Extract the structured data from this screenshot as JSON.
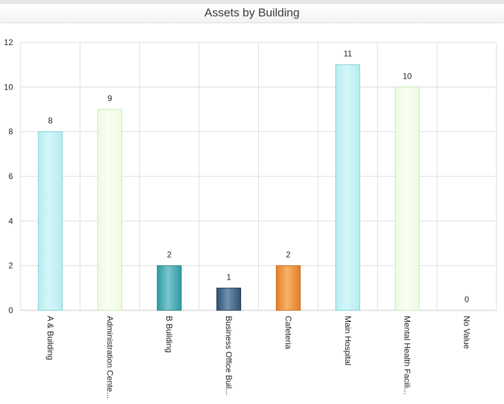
{
  "panel": {
    "title": "Assets by Building"
  },
  "colors": {
    "grid": "#dddddd",
    "axis": "#c8c8c8",
    "text": "#222222"
  },
  "chart_data": {
    "type": "bar",
    "title": "Assets by Building",
    "xlabel": "",
    "ylabel": "",
    "ylim": [
      0,
      12
    ],
    "yticks": [
      0,
      2,
      4,
      6,
      8,
      10,
      12
    ],
    "grid": true,
    "categories": [
      "A & Building",
      "Administration Cente...",
      "B Building",
      "Business Office Buil...",
      "Cafeteria",
      "Main Hospital",
      "Mental Health Facili...",
      "No Value"
    ],
    "values": [
      8,
      9,
      2,
      1,
      2,
      11,
      10,
      0
    ],
    "bar_colors": [
      [
        "#b8ecef",
        "#d3f7f8",
        "#7fcfd6"
      ],
      [
        "#eefbe2",
        "#fafff3",
        "#c9e8b0"
      ],
      [
        "#2e9aa4",
        "#7bc6cc",
        "#1f7f88"
      ],
      [
        "#2f5173",
        "#7391ad",
        "#1f3a57"
      ],
      [
        "#e57e25",
        "#f7b16b",
        "#c7661a"
      ],
      [
        "#b8ecef",
        "#d3f7f8",
        "#7fcfd6"
      ],
      [
        "#eefbe2",
        "#fafff3",
        "#c9e8b0"
      ],
      [
        "#cccccc",
        "#eeeeee",
        "#aaaaaa"
      ]
    ]
  }
}
